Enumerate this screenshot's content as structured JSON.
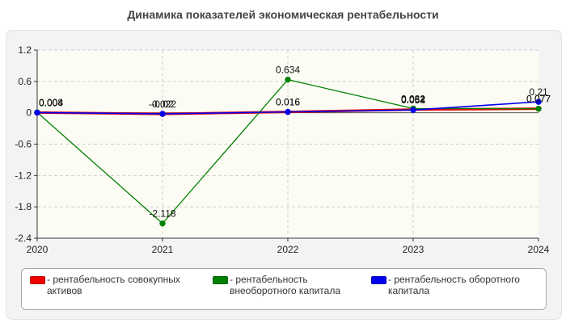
{
  "title": "Динамика показателей экономическая рентабельности",
  "colors": {
    "series1": "#ee0000",
    "series2": "#008000",
    "series3": "#0000ee"
  },
  "legend": {
    "items": [
      {
        "label": "- рентабельность совокупных активов"
      },
      {
        "label": "- рентабельность внеоборотного капитала"
      },
      {
        "label": "- рентабельность оборотного капитала"
      }
    ]
  },
  "chart_data": {
    "type": "line",
    "x": [
      "2020",
      "2021",
      "2022",
      "2023",
      "2024"
    ],
    "ylim": [
      -2.4,
      1.2
    ],
    "yticks": [
      "1.2",
      "0.6",
      "0",
      "-0.6",
      "-1.2",
      "-1.8",
      "-2.4"
    ],
    "grid": true,
    "legend_position": "bottom",
    "series": [
      {
        "name": "рентабельность совокупных активов",
        "color": "#ee0000",
        "values": [
          0.004,
          -0.022,
          0.016,
          0.062,
          0.077
        ],
        "labels": [
          "0.004",
          "-0.022",
          "0.016",
          "0.062",
          "0.077"
        ]
      },
      {
        "name": "рентабельность внеоборотного капитала",
        "color": "#008000",
        "values": [
          0.008,
          -2.118,
          0.634,
          0.082,
          0.077
        ],
        "labels": [
          "0.008",
          "-2.118",
          "0.634",
          "0.082",
          "0.077"
        ]
      },
      {
        "name": "рентабельность оборотного капитала",
        "color": "#0000ee",
        "values": [
          0.004,
          -0.02,
          0.016,
          0.054,
          0.21
        ],
        "labels": [
          "0.004",
          "-0.02",
          "0.016",
          "0.054",
          "0.21"
        ]
      }
    ]
  }
}
